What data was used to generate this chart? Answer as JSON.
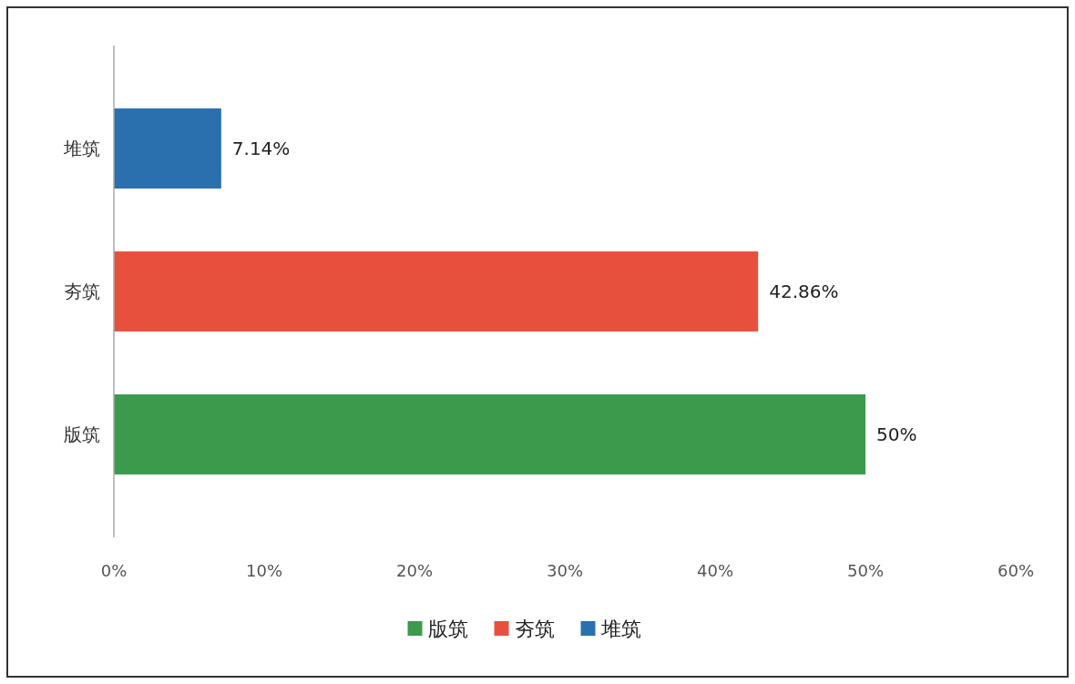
{
  "chart_data": {
    "type": "bar",
    "orientation": "horizontal",
    "categories": [
      "堆筑",
      "夯筑",
      "版筑"
    ],
    "series": [
      {
        "name": "版筑",
        "color": "#3c9a4c",
        "values": [
          null,
          null,
          50
        ],
        "value_labels": [
          null,
          null,
          "50%"
        ]
      },
      {
        "name": "夯筑",
        "color": "#e8503e",
        "values": [
          null,
          42.86,
          null
        ],
        "value_labels": [
          null,
          "42.86%",
          null
        ]
      },
      {
        "name": "堆筑",
        "color": "#2a6fae",
        "values": [
          7.14,
          null,
          null
        ],
        "value_labels": [
          "7.14%",
          null,
          null
        ]
      }
    ],
    "xlim": [
      0,
      60
    ],
    "xticks": [
      {
        "value": 0,
        "label": "0%"
      },
      {
        "value": 10,
        "label": "10%"
      },
      {
        "value": 20,
        "label": "20%"
      },
      {
        "value": 30,
        "label": "30%"
      },
      {
        "value": 40,
        "label": "40%"
      },
      {
        "value": 50,
        "label": "50%"
      },
      {
        "value": 60,
        "label": "60%"
      }
    ],
    "grid": false,
    "legend": "bottom"
  }
}
